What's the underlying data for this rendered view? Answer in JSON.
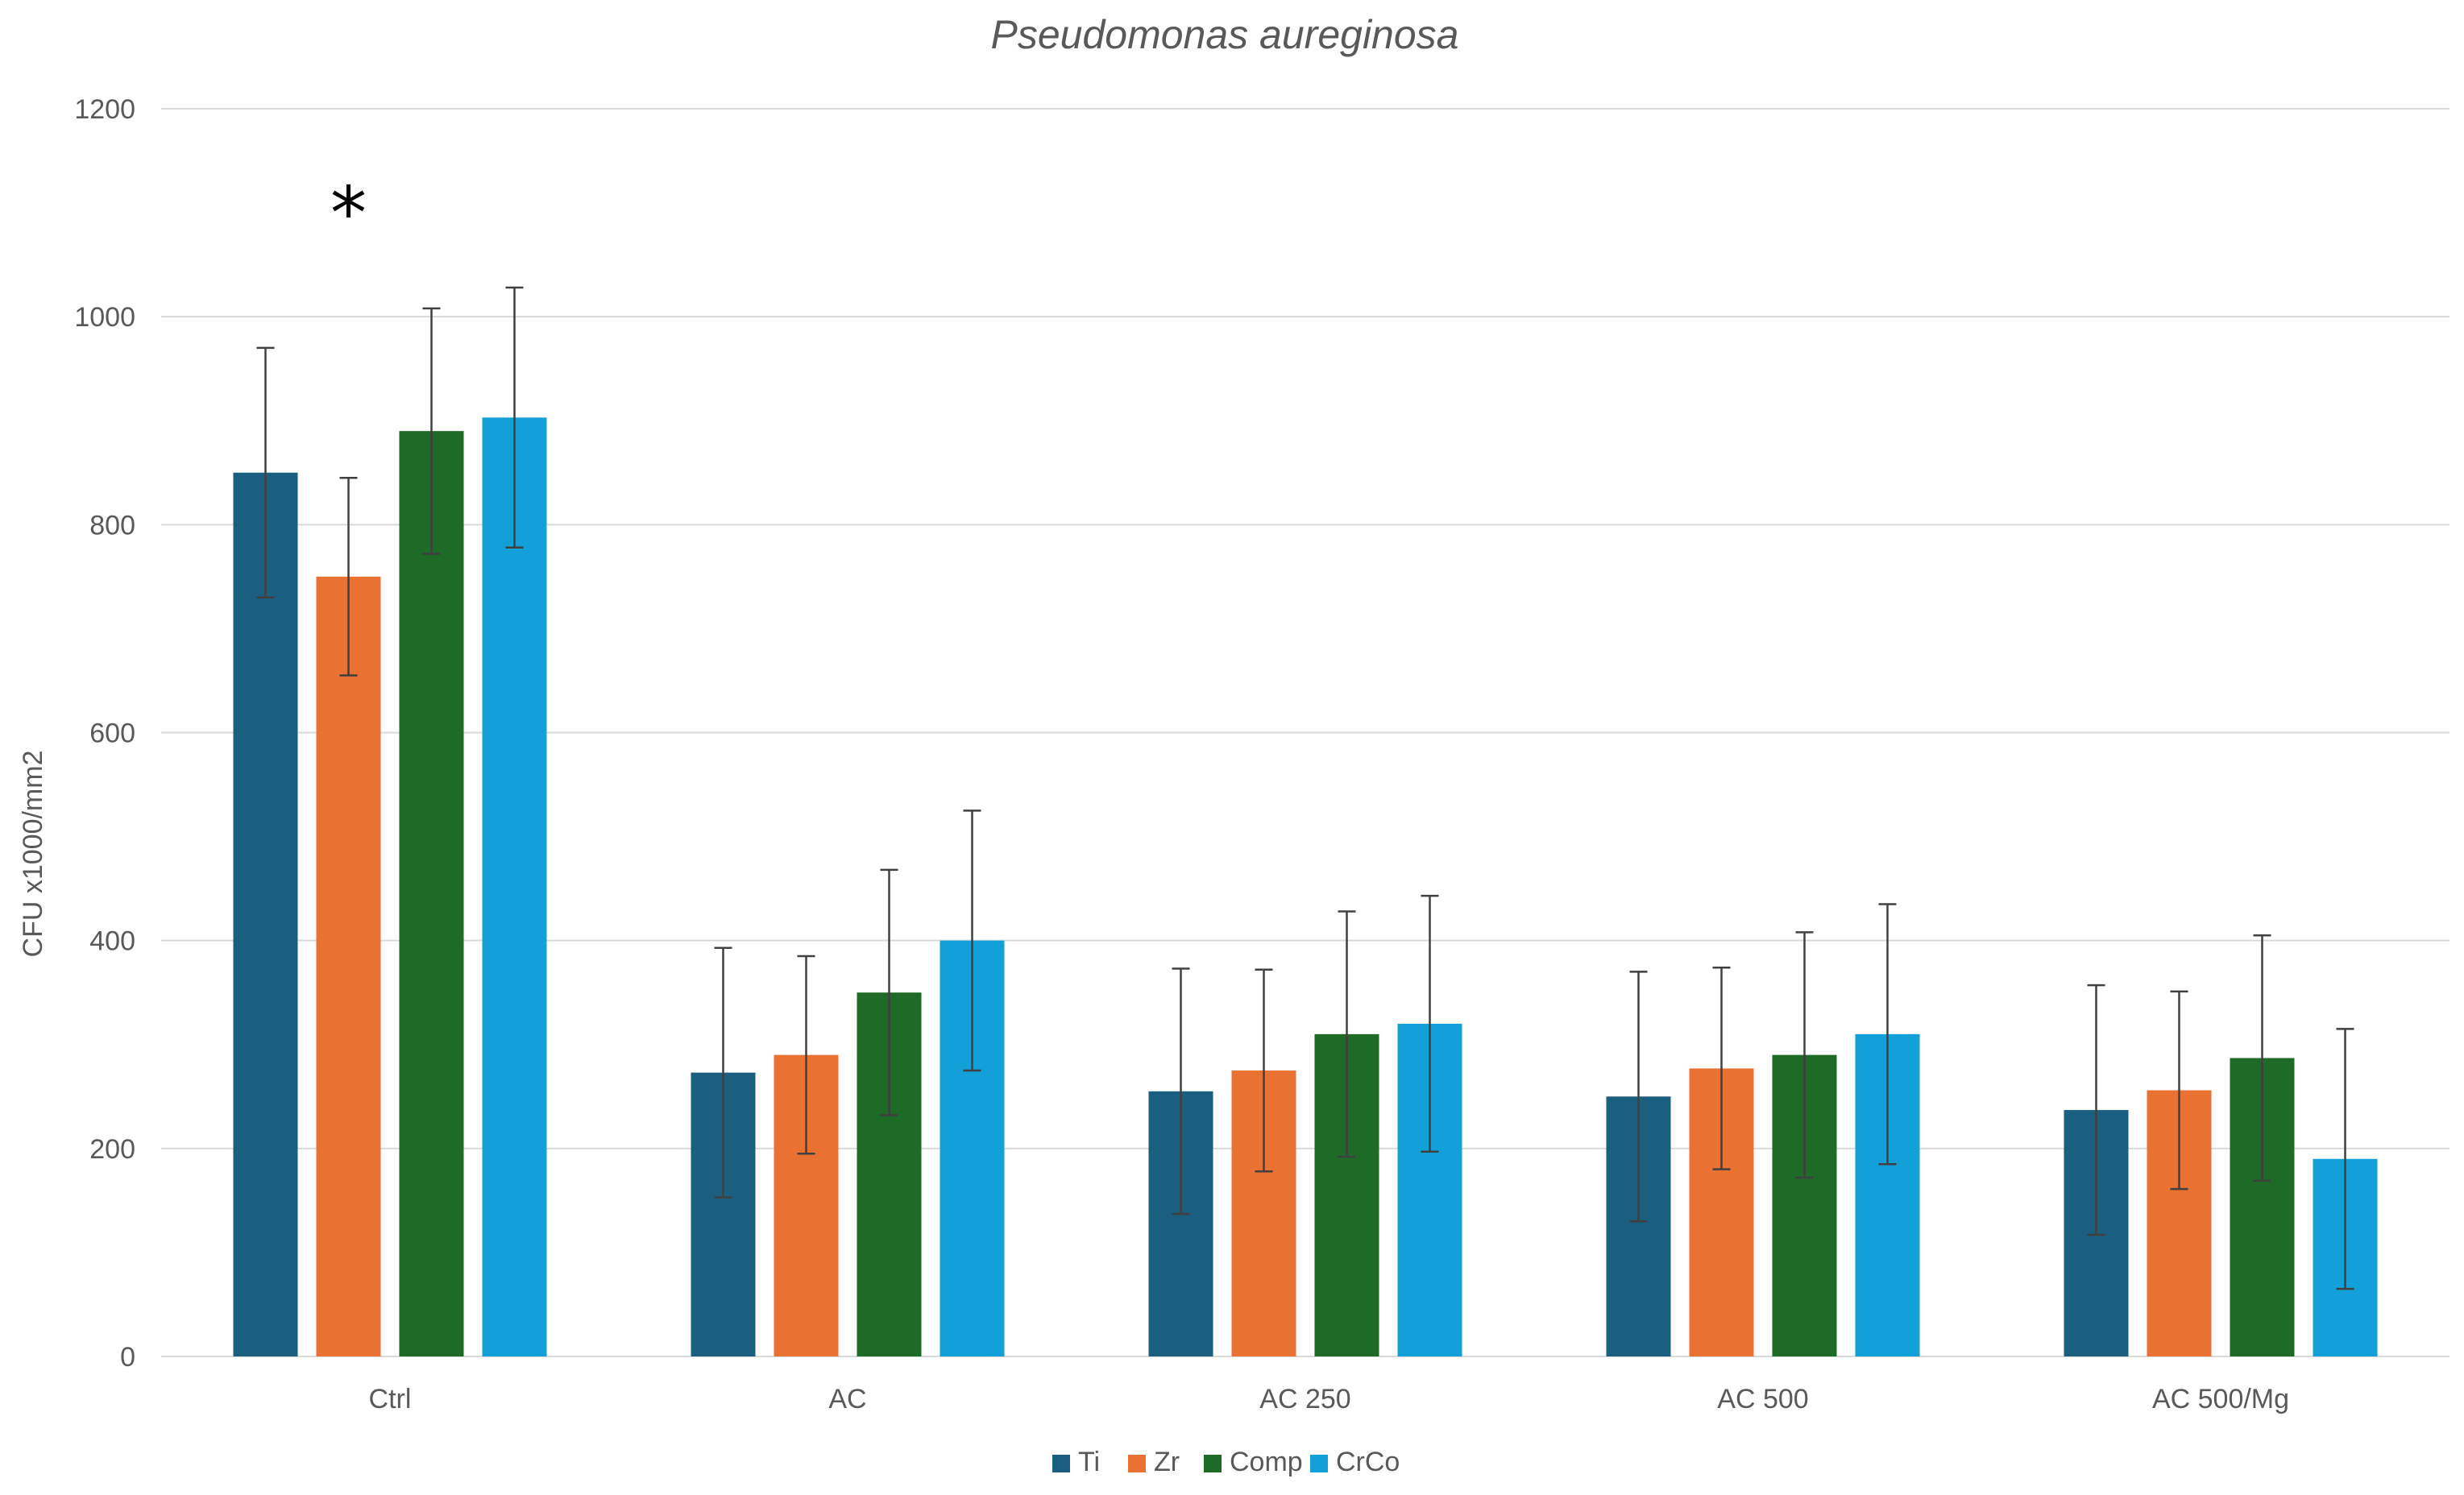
{
  "chart_data": {
    "type": "bar",
    "title": "Pseudomonas aureginosa",
    "xlabel": "",
    "ylabel": "CFU x1000/mm2",
    "ylim": [
      0,
      1200
    ],
    "yticks": [
      0,
      200,
      400,
      600,
      800,
      1000,
      1200
    ],
    "grid": true,
    "legend_position": "bottom",
    "categories": [
      "Ctrl",
      "AC",
      "AC 250",
      "AC 500",
      "AC 500/Mg"
    ],
    "series": [
      {
        "name": "Ti",
        "color": "#1a5e80",
        "values": [
          850,
          273,
          255,
          250,
          237
        ],
        "errors": [
          120,
          120,
          118,
          120,
          120
        ]
      },
      {
        "name": "Zr",
        "color": "#e97132",
        "values": [
          750,
          290,
          275,
          277,
          256
        ],
        "errors": [
          95,
          95,
          97,
          97,
          95
        ]
      },
      {
        "name": "Comp",
        "color": "#1d6b27",
        "values": [
          890,
          350,
          310,
          290,
          287
        ],
        "errors": [
          118,
          118,
          118,
          118,
          118
        ]
      },
      {
        "name": "CrCo",
        "color": "#139fd8",
        "values": [
          903,
          400,
          320,
          310,
          190
        ],
        "errors": [
          125,
          125,
          123,
          125,
          125
        ]
      }
    ],
    "annotations": [
      {
        "text": "*",
        "category": "Ctrl",
        "series": "Zr",
        "y": 1110
      }
    ]
  }
}
